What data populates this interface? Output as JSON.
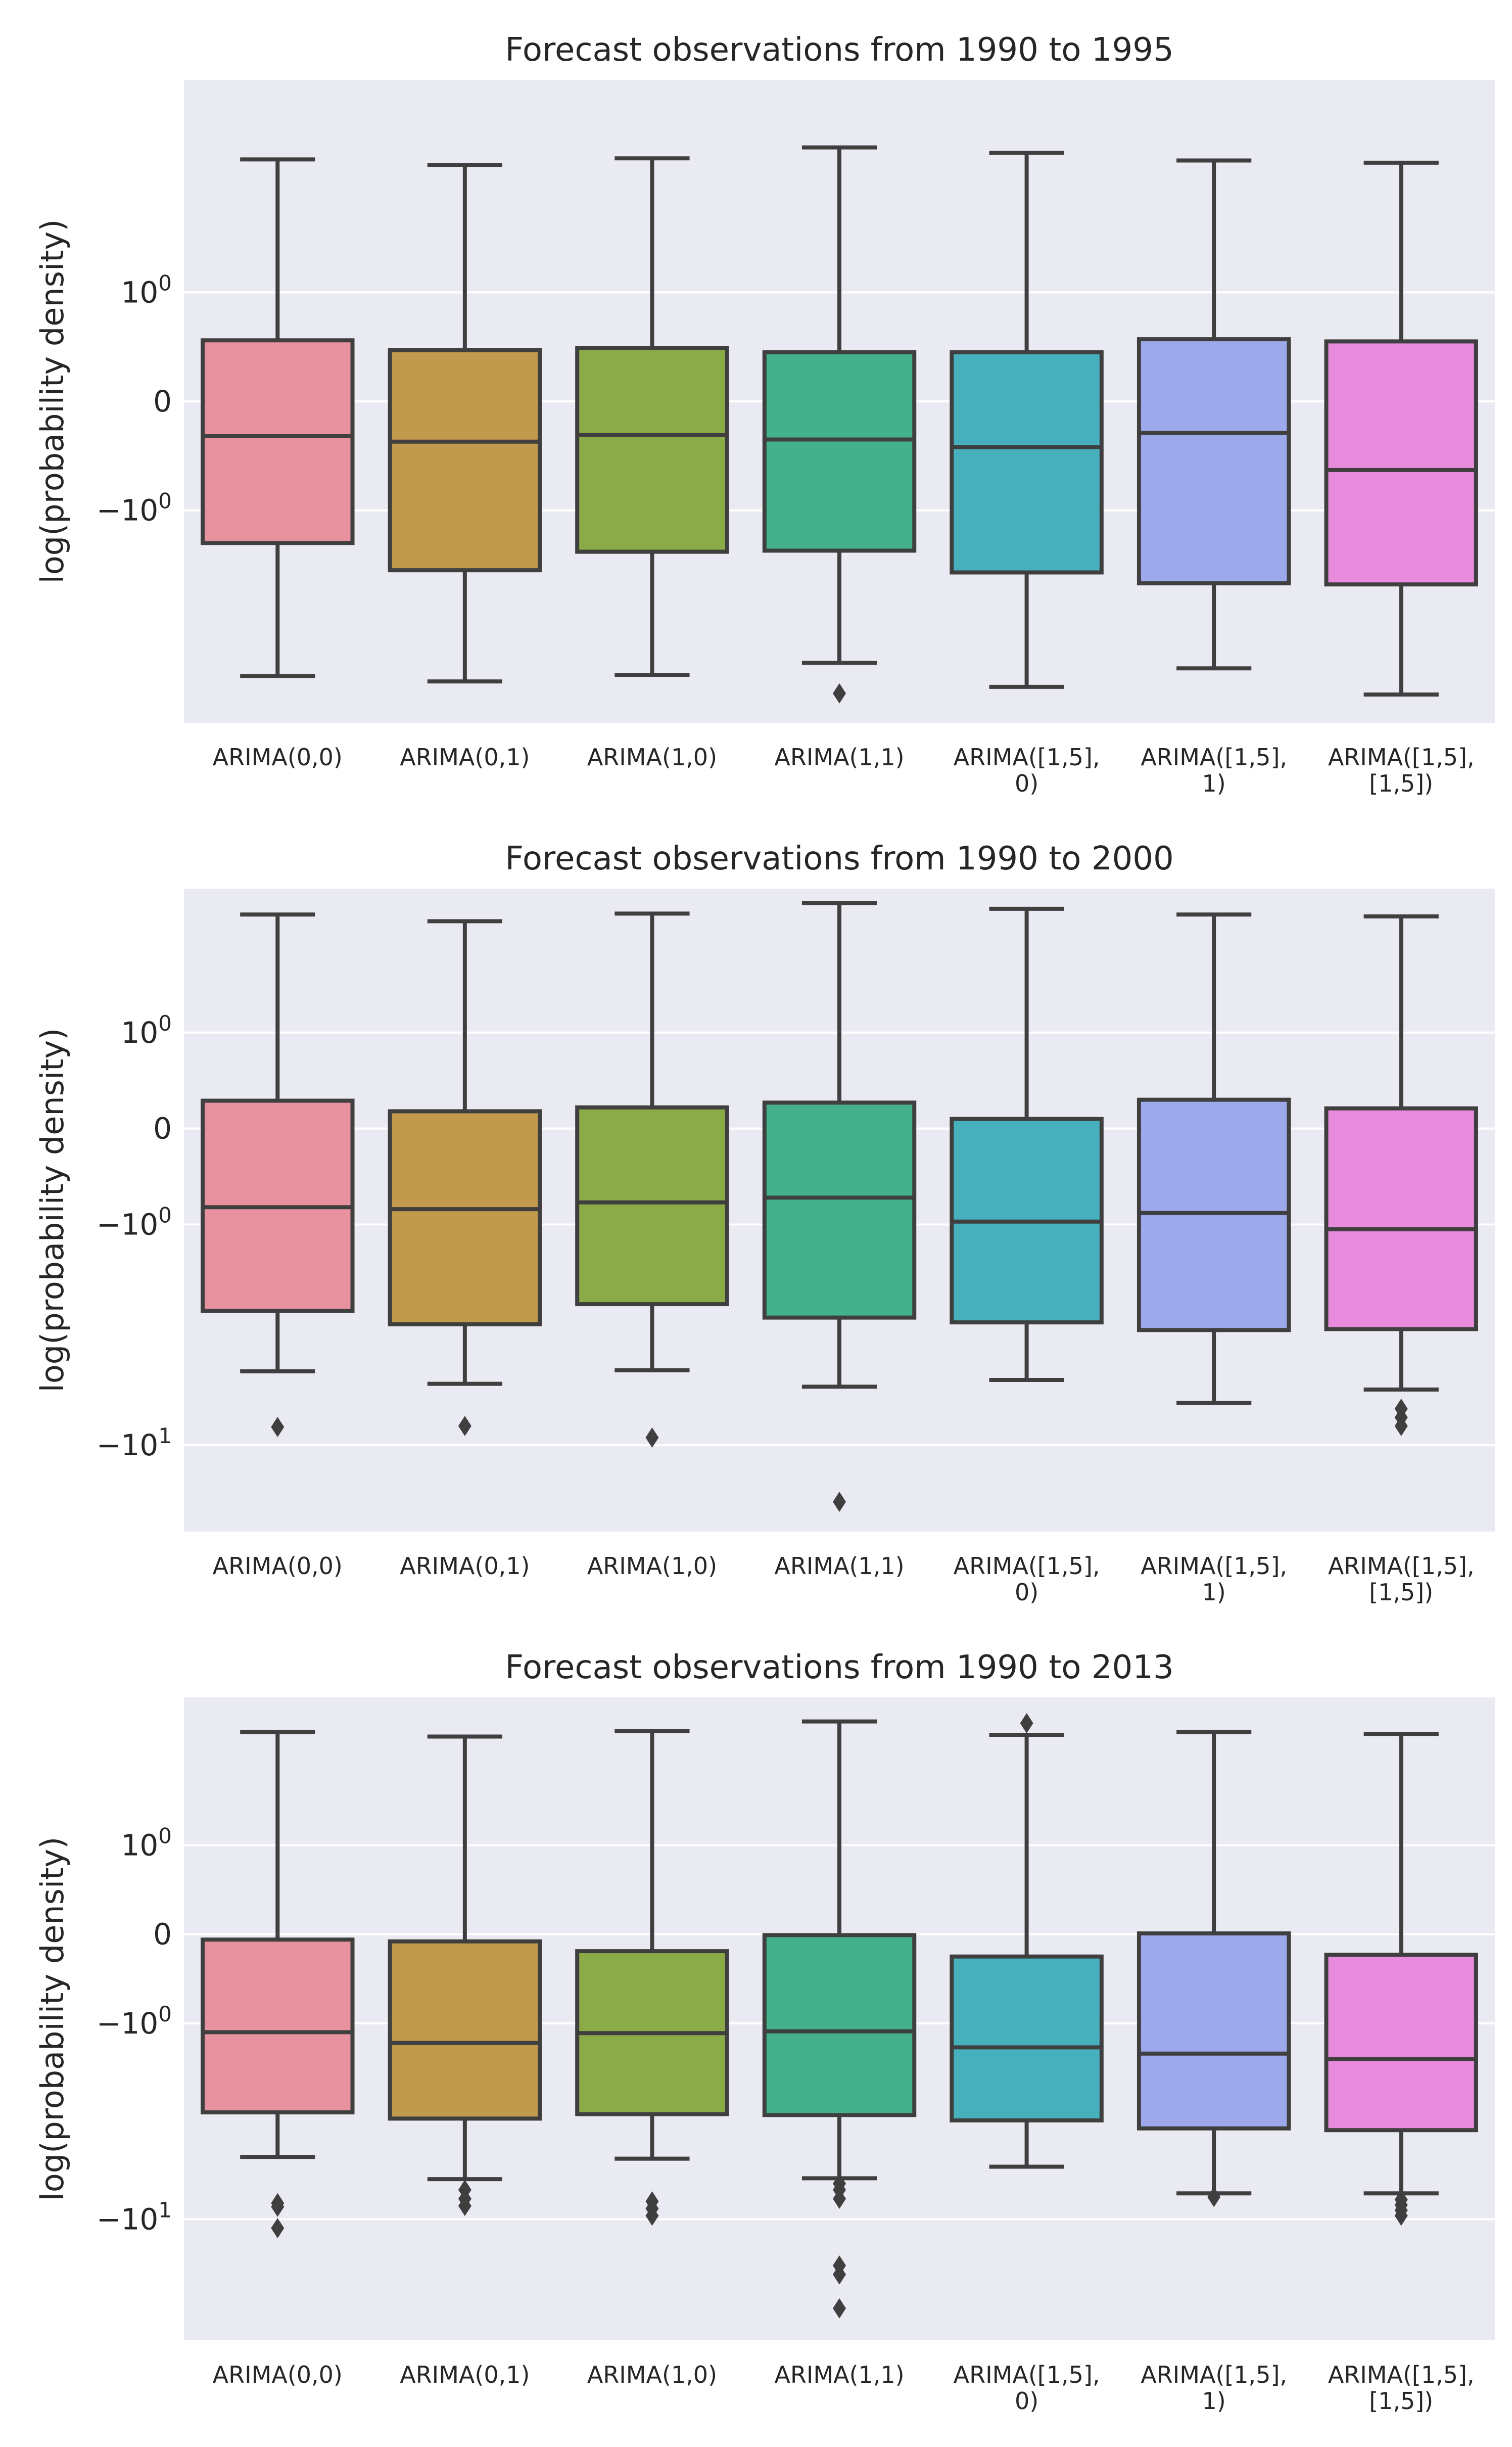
{
  "colors": {
    "background": "#eaeaf2",
    "grid": "#ffffff",
    "line": "#3f3f3f",
    "boxes": [
      "#e8929f",
      "#c19a4d",
      "#8aab47",
      "#45b08c",
      "#46b0bd",
      "#9da9ea",
      "#e88bdd"
    ]
  },
  "chart_data": [
    {
      "type": "box",
      "title": "Forecast observations from 1990 to 1995",
      "ylabel": "log(probability density)",
      "yscale": "symlog",
      "yticks": [
        {
          "value": 1,
          "label": "10",
          "exp": "0"
        },
        {
          "value": 0,
          "label": "0",
          "exp": ""
        },
        {
          "value": -1,
          "label": "−10",
          "exp": "0"
        }
      ],
      "ylim": [
        -2.95,
        2.95
      ],
      "categories": [
        [
          "ARIMA(0,0)"
        ],
        [
          "ARIMA(0,1)"
        ],
        [
          "ARIMA(1,0)"
        ],
        [
          "ARIMA(1,1)"
        ],
        [
          "ARIMA([1,5],",
          "0)"
        ],
        [
          "ARIMA([1,5],",
          "1)"
        ],
        [
          "ARIMA([1,5],",
          "[1,5])"
        ]
      ],
      "boxes": [
        {
          "whislo": -2.52,
          "q1": -1.3,
          "med": -0.32,
          "q3": 0.56,
          "whishi": 2.22,
          "fliers": []
        },
        {
          "whislo": -2.57,
          "q1": -1.55,
          "med": -0.37,
          "q3": 0.47,
          "whishi": 2.17,
          "fliers": []
        },
        {
          "whislo": -2.51,
          "q1": -1.38,
          "med": -0.31,
          "q3": 0.49,
          "whishi": 2.23,
          "fliers": []
        },
        {
          "whislo": -2.4,
          "q1": -1.37,
          "med": -0.35,
          "q3": 0.45,
          "whishi": 2.33,
          "fliers": [
            -2.68
          ]
        },
        {
          "whislo": -2.62,
          "q1": -1.57,
          "med": -0.42,
          "q3": 0.45,
          "whishi": 2.28,
          "fliers": []
        },
        {
          "whislo": -2.45,
          "q1": -1.67,
          "med": -0.29,
          "q3": 0.57,
          "whishi": 2.21,
          "fliers": []
        },
        {
          "whislo": -2.69,
          "q1": -1.68,
          "med": -0.63,
          "q3": 0.55,
          "whishi": 2.19,
          "fliers": []
        }
      ]
    },
    {
      "type": "box",
      "title": "Forecast observations from 1990 to 2000",
      "ylabel": "log(probability density)",
      "yscale": "symlog",
      "yticks": [
        {
          "value": 1,
          "label": "10",
          "exp": "0"
        },
        {
          "value": 0,
          "label": "0",
          "exp": ""
        },
        {
          "value": -1,
          "label": "−10",
          "exp": "0"
        },
        {
          "value": -3.3,
          "label": "−10",
          "exp": "1"
        }
      ],
      "ylim": [
        -4.2,
        2.5
      ],
      "categories": [
        [
          "ARIMA(0,0)"
        ],
        [
          "ARIMA(0,1)"
        ],
        [
          "ARIMA(1,0)"
        ],
        [
          "ARIMA(1,1)"
        ],
        [
          "ARIMA([1,5],",
          "0)"
        ],
        [
          "ARIMA([1,5],",
          "1)"
        ],
        [
          "ARIMA([1,5],",
          "[1,5])"
        ]
      ],
      "boxes": [
        {
          "whislo": -2.53,
          "q1": -1.9,
          "med": -0.82,
          "q3": 0.29,
          "whishi": 2.23,
          "fliers": [
            -3.11
          ]
        },
        {
          "whislo": -2.66,
          "q1": -2.04,
          "med": -0.84,
          "q3": 0.18,
          "whishi": 2.16,
          "fliers": [
            -3.1
          ]
        },
        {
          "whislo": -2.52,
          "q1": -1.83,
          "med": -0.77,
          "q3": 0.22,
          "whishi": 2.24,
          "fliers": [
            -3.22
          ]
        },
        {
          "whislo": -2.69,
          "q1": -1.97,
          "med": -0.72,
          "q3": 0.27,
          "whishi": 2.35,
          "fliers": [
            -3.89
          ]
        },
        {
          "whislo": -2.62,
          "q1": -2.02,
          "med": -0.97,
          "q3": 0.1,
          "whishi": 2.29,
          "fliers": []
        },
        {
          "whislo": -2.86,
          "q1": -2.1,
          "med": -0.88,
          "q3": 0.3,
          "whishi": 2.23,
          "fliers": []
        },
        {
          "whislo": -2.72,
          "q1": -2.09,
          "med": -1.05,
          "q3": 0.21,
          "whishi": 2.21,
          "fliers": [
            -2.92,
            -3.01,
            -3.1
          ]
        }
      ]
    },
    {
      "type": "box",
      "title": "Forecast observations from 1990 to 2013",
      "ylabel": "log(probability density)",
      "yscale": "symlog",
      "yticks": [
        {
          "value": 1,
          "label": "10",
          "exp": "0"
        },
        {
          "value": 0,
          "label": "0",
          "exp": ""
        },
        {
          "value": -1,
          "label": "−10",
          "exp": "0"
        },
        {
          "value": -3.2,
          "label": "−10",
          "exp": "1"
        }
      ],
      "ylim": [
        -4.56,
        2.66
      ],
      "categories": [
        [
          "ARIMA(0,0)"
        ],
        [
          "ARIMA(0,1)"
        ],
        [
          "ARIMA(1,0)"
        ],
        [
          "ARIMA(1,1)"
        ],
        [
          "ARIMA([1,5],",
          "0)"
        ],
        [
          "ARIMA([1,5],",
          "1)"
        ],
        [
          "ARIMA([1,5],",
          "[1,5])"
        ]
      ],
      "boxes": [
        {
          "whislo": -2.5,
          "q1": -2.0,
          "med": -1.1,
          "q3": -0.06,
          "whishi": 2.27,
          "fliers": [
            -3.02,
            -3.06,
            -3.3
          ]
        },
        {
          "whislo": -2.75,
          "q1": -2.07,
          "med": -1.22,
          "q3": -0.08,
          "whishi": 2.22,
          "fliers": [
            -2.87,
            -2.97,
            -3.05
          ]
        },
        {
          "whislo": -2.52,
          "q1": -2.02,
          "med": -1.11,
          "q3": -0.19,
          "whishi": 2.28,
          "fliers": [
            -3.0,
            -3.08,
            -3.16
          ]
        },
        {
          "whislo": -2.74,
          "q1": -2.03,
          "med": -1.09,
          "q3": -0.01,
          "whishi": 2.39,
          "fliers": [
            -2.8,
            -2.87,
            -2.97,
            -3.72,
            -3.82,
            -4.2
          ]
        },
        {
          "whislo": -2.61,
          "q1": -2.09,
          "med": -1.27,
          "q3": -0.25,
          "whishi": 2.24,
          "fliers": [
            2.37
          ]
        },
        {
          "whislo": -2.91,
          "q1": -2.18,
          "med": -1.34,
          "q3": 0.01,
          "whishi": 2.27,
          "fliers": [
            -2.95
          ]
        },
        {
          "whislo": -2.91,
          "q1": -2.2,
          "med": -1.4,
          "q3": -0.23,
          "whishi": 2.25,
          "fliers": [
            -2.98,
            -3.04,
            -3.1,
            -3.16
          ]
        }
      ]
    }
  ]
}
